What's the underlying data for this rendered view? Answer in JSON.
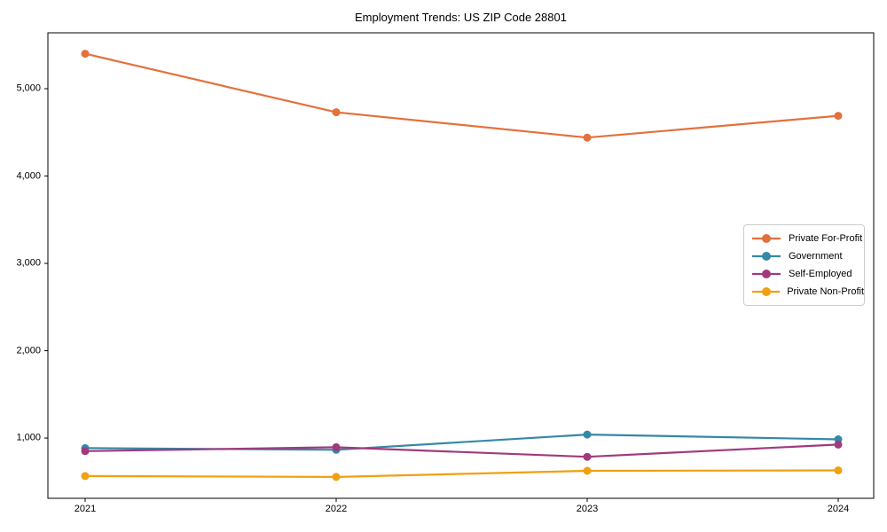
{
  "figure": {
    "title": "Employment Trends: US ZIP Code 28801"
  },
  "chart_data": {
    "type": "line",
    "title": "Employment Trends: US ZIP Code 28801",
    "xlabel": "",
    "ylabel": "",
    "categories": [
      "2021",
      "2022",
      "2023",
      "2024"
    ],
    "series": [
      {
        "name": "Private For-Profit",
        "color": "#E2713D",
        "values": [
          5400,
          4730,
          4440,
          4690
        ]
      },
      {
        "name": "Government",
        "color": "#3588A6",
        "values": [
          885,
          865,
          1040,
          985
        ]
      },
      {
        "name": "Self-Employed",
        "color": "#A03A7D",
        "values": [
          850,
          895,
          785,
          925
        ]
      },
      {
        "name": "Private Non-Profit",
        "color": "#F0A010",
        "values": [
          565,
          555,
          625,
          630
        ]
      }
    ],
    "yticks": [
      1000,
      2000,
      3000,
      4000,
      5000
    ],
    "ytick_labels": [
      "1,000",
      "2,000",
      "3,000",
      "4,000",
      "5,000"
    ],
    "ylim": [
      310,
      5640
    ],
    "grid": false,
    "marker": "circle",
    "legend_position": "center-right",
    "frame_color": "#000000",
    "background_color": "#ffffff"
  }
}
